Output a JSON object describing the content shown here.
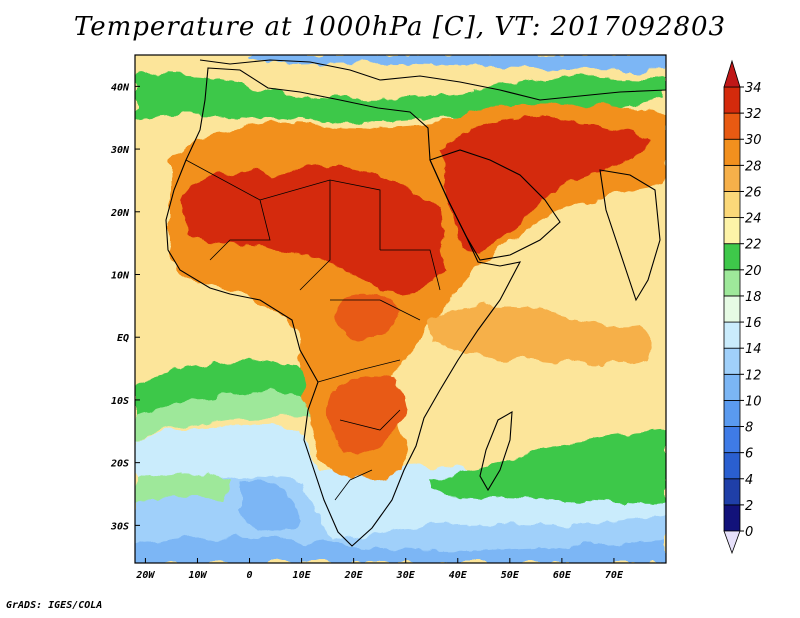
{
  "title": "Temperature at 1000hPa [C], VT: 2017092803",
  "footer": "GrADS: IGES/COLA",
  "map": {
    "lon_range": [
      -22,
      80
    ],
    "lat_range": [
      -36,
      45
    ],
    "lat_ticks": [
      {
        "value": 40,
        "label": "40N"
      },
      {
        "value": 30,
        "label": "30N"
      },
      {
        "value": 20,
        "label": "20N"
      },
      {
        "value": 10,
        "label": "10N"
      },
      {
        "value": 0,
        "label": "EQ"
      },
      {
        "value": -10,
        "label": "10S"
      },
      {
        "value": -20,
        "label": "20S"
      },
      {
        "value": -30,
        "label": "30S"
      }
    ],
    "lon_ticks": [
      {
        "value": -20,
        "label": "20W"
      },
      {
        "value": -10,
        "label": "10W"
      },
      {
        "value": 0,
        "label": "0"
      },
      {
        "value": 10,
        "label": "10E"
      },
      {
        "value": 20,
        "label": "20E"
      },
      {
        "value": 30,
        "label": "30E"
      },
      {
        "value": 40,
        "label": "40E"
      },
      {
        "value": 50,
        "label": "50E"
      },
      {
        "value": 60,
        "label": "60E"
      },
      {
        "value": 70,
        "label": "70E"
      }
    ]
  },
  "colorbar": {
    "bins": [
      {
        "min": 0,
        "max": 2,
        "color": "#12127a"
      },
      {
        "min": 2,
        "max": 4,
        "color": "#1f3fa8"
      },
      {
        "min": 4,
        "max": 6,
        "color": "#2a5fd0"
      },
      {
        "min": 6,
        "max": 8,
        "color": "#3f7be6"
      },
      {
        "min": 8,
        "max": 10,
        "color": "#5a9aef"
      },
      {
        "min": 10,
        "max": 12,
        "color": "#7bb6f5"
      },
      {
        "min": 12,
        "max": 14,
        "color": "#a0d0fa"
      },
      {
        "min": 14,
        "max": 16,
        "color": "#caecfc"
      },
      {
        "min": 16,
        "max": 18,
        "color": "#e6fbe4"
      },
      {
        "min": 18,
        "max": 20,
        "color": "#9ee89a"
      },
      {
        "min": 20,
        "max": 22,
        "color": "#3ec84a"
      },
      {
        "min": 22,
        "max": 24,
        "color": "#fdf3a8"
      },
      {
        "min": 24,
        "max": 26,
        "color": "#fbd879"
      },
      {
        "min": 26,
        "max": 28,
        "color": "#f6b04a"
      },
      {
        "min": 28,
        "max": 30,
        "color": "#f2901e"
      },
      {
        "min": 30,
        "max": 32,
        "color": "#e85a12"
      },
      {
        "min": 32,
        "max": 34,
        "color": "#d42a0c"
      }
    ],
    "under_color": "#e6e0fa",
    "over_color": "#c01818",
    "labels": [
      "0",
      "2",
      "4",
      "6",
      "8",
      "10",
      "12",
      "14",
      "16",
      "18",
      "20",
      "22",
      "24",
      "26",
      "28",
      "30",
      "32",
      "34"
    ]
  },
  "fields": {
    "background_color": "#fce59a",
    "regions": [
      {
        "name": "southern-ocean-cold",
        "color": "#7bb6f5"
      },
      {
        "name": "southern-ocean-cool",
        "color": "#a0d0fa"
      },
      {
        "name": "southern-ocean-mild",
        "color": "#caecfc"
      },
      {
        "name": "south-atlantic-green",
        "color": "#3ec84a"
      },
      {
        "name": "south-atlantic-light",
        "color": "#9ee89a"
      },
      {
        "name": "indian-ocean-green",
        "color": "#3ec84a"
      },
      {
        "name": "mediterranean-green",
        "color": "#3ec84a"
      },
      {
        "name": "europe-blue",
        "color": "#7bb6f5"
      },
      {
        "name": "sahara-hot",
        "color": "#f2901e"
      },
      {
        "name": "sahara-core",
        "color": "#d42a0c"
      },
      {
        "name": "arabia-core",
        "color": "#d42a0c"
      },
      {
        "name": "southern-africa-hot",
        "color": "#e85a12"
      },
      {
        "name": "east-africa-warm",
        "color": "#f6b04a"
      }
    ]
  }
}
